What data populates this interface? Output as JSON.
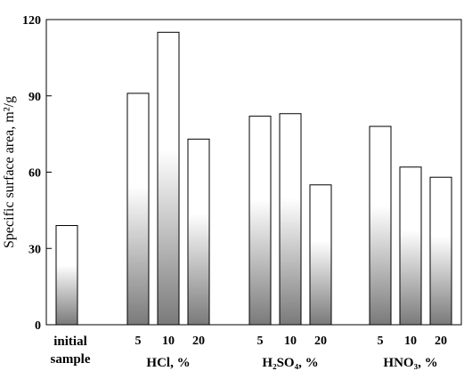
{
  "chart_data": {
    "type": "bar",
    "ylabel": "Specific surface area, m²/g",
    "ylim": [
      0,
      120
    ],
    "yticks": [
      0,
      30,
      60,
      90,
      120
    ],
    "bar_fill": "gradient white-to-gray",
    "groups": [
      {
        "label_lines": [
          "initial",
          "sample"
        ],
        "bars": [
          {
            "category": "",
            "value": 39
          }
        ]
      },
      {
        "label": "HCl, %",
        "bars": [
          {
            "category": "5",
            "value": 91
          },
          {
            "category": "10",
            "value": 115
          },
          {
            "category": "20",
            "value": 73
          }
        ]
      },
      {
        "label": "H₂SO₄, %",
        "bars": [
          {
            "category": "5",
            "value": 82
          },
          {
            "category": "10",
            "value": 83
          },
          {
            "category": "20",
            "value": 55
          }
        ]
      },
      {
        "label": "HNO₃, %",
        "bars": [
          {
            "category": "5",
            "value": 78
          },
          {
            "category": "10",
            "value": 62
          },
          {
            "category": "20",
            "value": 58
          }
        ]
      }
    ]
  }
}
